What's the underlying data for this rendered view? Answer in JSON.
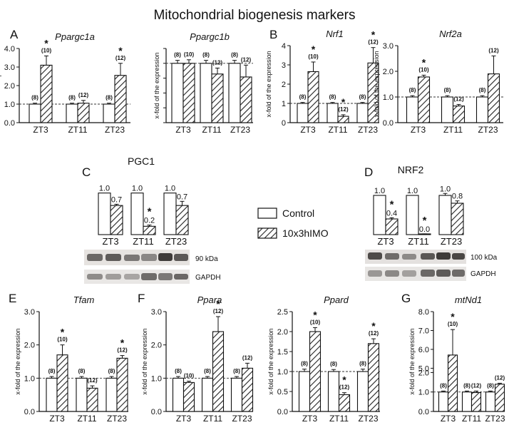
{
  "title": "Mitochondrial biogenesis markers",
  "y_axis_label": "x-fold of the expression",
  "groups": [
    "ZT3",
    "ZT11",
    "ZT23"
  ],
  "colors": {
    "control": "#ffffff",
    "treated_hatch": "#222222",
    "axis": "#111111"
  },
  "legend": {
    "control": "Control",
    "treated": "10x3hIMO"
  },
  "panel_letters": {
    "A": "A",
    "B": "B",
    "C": "C",
    "D": "D",
    "E": "E",
    "F": "F",
    "G": "G"
  },
  "blot_labels": {
    "pgc1_title": "PGC1",
    "pgc1_band": "90 kDa",
    "pgc1_loading": "GAPDH",
    "nrf2_title": "NRF2",
    "nrf2_band": "100 kDa",
    "nrf2_loading": "GAPDH"
  },
  "chart_data": [
    {
      "id": "ppargc1a",
      "type": "bar",
      "title": "Ppargc1a",
      "ylabel": "x-fold of the expression",
      "categories": [
        "ZT3",
        "ZT11",
        "ZT23"
      ],
      "ylim": [
        0,
        4
      ],
      "yticks": [
        "0.0",
        "1.0",
        "2.0",
        "3.0",
        "4.0"
      ],
      "series": [
        {
          "name": "Control",
          "values": [
            1.0,
            1.0,
            1.0
          ],
          "err": [
            0.05,
            0.05,
            0.05
          ],
          "n": [
            "(8)",
            "(8)",
            "(8)"
          ],
          "sig": [
            false,
            false,
            false
          ]
        },
        {
          "name": "10x3hIMO",
          "values": [
            3.1,
            1.05,
            2.55
          ],
          "err": [
            0.5,
            0.15,
            0.65
          ],
          "n": [
            "(10)",
            "(12)",
            "(12)"
          ],
          "sig": [
            true,
            false,
            true
          ]
        }
      ],
      "reference_line": 1.0
    },
    {
      "id": "ppargc1b",
      "type": "bar",
      "title": "Ppargc1b",
      "ylabel": "x-fold of the expression",
      "categories": [
        "ZT3",
        "ZT11",
        "ZT23"
      ],
      "ylim": [
        0,
        1.25
      ],
      "yticks": [],
      "series": [
        {
          "name": "Control",
          "values": [
            1.0,
            1.0,
            1.0
          ],
          "err": [
            0.05,
            0.05,
            0.05
          ],
          "n": [
            "(8)",
            "(8)",
            "(8)"
          ],
          "sig": [
            false,
            false,
            false
          ]
        },
        {
          "name": "10x3hIMO",
          "values": [
            1.0,
            0.82,
            0.77
          ],
          "err": [
            0.06,
            0.1,
            0.2
          ],
          "n": [
            "(10)",
            "(12)",
            "(12)"
          ],
          "sig": [
            false,
            false,
            false
          ]
        }
      ],
      "reference_line": 1.0
    },
    {
      "id": "nrf1",
      "type": "bar",
      "title": "Nrf1",
      "ylabel": "x-fold of the expression",
      "categories": [
        "ZT3",
        "ZT11",
        "ZT23"
      ],
      "ylim": [
        0,
        4
      ],
      "yticks": [
        "0",
        "1",
        "2",
        "3",
        "4"
      ],
      "series": [
        {
          "name": "Control",
          "values": [
            1.0,
            1.0,
            1.0
          ],
          "err": [
            0.05,
            0.05,
            0.05
          ],
          "n": [
            "(8)",
            "(8)",
            "(8)"
          ],
          "sig": [
            false,
            false,
            false
          ]
        },
        {
          "name": "10x3hIMO",
          "values": [
            2.65,
            0.33,
            3.1
          ],
          "err": [
            0.5,
            0.08,
            0.8
          ],
          "n": [
            "(10)",
            "(12)",
            "(12)"
          ],
          "sig": [
            true,
            true,
            true
          ]
        }
      ],
      "reference_line": 1.0
    },
    {
      "id": "nrf2a",
      "type": "bar",
      "title": "Nrf2a",
      "ylabel": "x-fold of the expression",
      "categories": [
        "ZT3",
        "ZT11",
        "ZT23"
      ],
      "ylim": [
        0,
        3
      ],
      "yticks": [
        "0.0",
        "1.0",
        "2.0",
        "3.0"
      ],
      "series": [
        {
          "name": "Control",
          "values": [
            1.0,
            1.0,
            1.0
          ],
          "err": [
            0.05,
            0.05,
            0.05
          ],
          "n": [
            "(8)",
            "(8)",
            "(8)"
          ],
          "sig": [
            false,
            false,
            false
          ]
        },
        {
          "name": "10x3hIMO",
          "values": [
            1.78,
            0.65,
            1.9
          ],
          "err": [
            0.07,
            0.06,
            0.7
          ],
          "n": [
            "(10)",
            "(12)",
            "(12)"
          ],
          "sig": [
            true,
            false,
            false
          ]
        }
      ],
      "reference_line": 1.0
    },
    {
      "id": "pgc1_blot",
      "type": "bar",
      "title": "",
      "categories": [
        "ZT3",
        "ZT11",
        "ZT23"
      ],
      "ylim": [
        0,
        1.2
      ],
      "series": [
        {
          "name": "Control",
          "values": [
            1.0,
            1.0,
            1.0
          ],
          "labels": [
            "1.0",
            "1.0",
            "1.0"
          ],
          "err": [
            0,
            0,
            0
          ],
          "sig": [
            false,
            false,
            false
          ]
        },
        {
          "name": "10x3hIMO",
          "values": [
            0.7,
            0.2,
            0.7
          ],
          "labels": [
            "0.7",
            "0.2",
            "0.7"
          ],
          "err": [
            0.03,
            0.03,
            0.1
          ],
          "sig": [
            false,
            true,
            false
          ]
        }
      ]
    },
    {
      "id": "nrf2_blot",
      "type": "bar",
      "title": "",
      "categories": [
        "ZT3",
        "ZT11",
        "ZT23"
      ],
      "ylim": [
        0,
        1.2
      ],
      "series": [
        {
          "name": "Control",
          "values": [
            1.0,
            1.0,
            1.0
          ],
          "labels": [
            "1.0",
            "1.0",
            "1.0"
          ],
          "err": [
            0,
            0,
            0.05
          ],
          "sig": [
            false,
            false,
            false
          ]
        },
        {
          "name": "10x3hIMO",
          "values": [
            0.4,
            0.0,
            0.8
          ],
          "labels": [
            "0.4",
            "0.0",
            "0.8"
          ],
          "err": [
            0.03,
            0.02,
            0.06
          ],
          "sig": [
            true,
            true,
            false
          ]
        }
      ]
    },
    {
      "id": "tfam",
      "type": "bar",
      "title": "Tfam",
      "ylabel": "x-fold of the expression",
      "categories": [
        "ZT3",
        "ZT11",
        "ZT23"
      ],
      "ylim": [
        0,
        3
      ],
      "yticks": [
        "0.0",
        "1.0",
        "2.0",
        "3.0"
      ],
      "series": [
        {
          "name": "Control",
          "values": [
            1.0,
            1.0,
            1.0
          ],
          "err": [
            0.05,
            0.05,
            0.05
          ],
          "n": [
            "(8)",
            "(8)",
            "(8)"
          ],
          "sig": [
            false,
            false,
            false
          ]
        },
        {
          "name": "10x3hIMO",
          "values": [
            1.7,
            0.7,
            1.6
          ],
          "err": [
            0.3,
            0.07,
            0.08
          ],
          "n": [
            "(10)",
            "(12)",
            "(12)"
          ],
          "sig": [
            true,
            false,
            true
          ]
        }
      ],
      "reference_line": 1.0
    },
    {
      "id": "ppara",
      "type": "bar",
      "title": "Ppara",
      "ylabel": "x-fold of the expression",
      "categories": [
        "ZT3",
        "ZT11",
        "ZT23"
      ],
      "ylim": [
        0,
        3
      ],
      "yticks": [
        "0.0",
        "1.0",
        "2.0",
        "3.0"
      ],
      "series": [
        {
          "name": "Control",
          "values": [
            1.0,
            1.0,
            1.0
          ],
          "err": [
            0.05,
            0.05,
            0.05
          ],
          "n": [
            "(8)",
            "(8)",
            "(8)"
          ],
          "sig": [
            false,
            false,
            false
          ]
        },
        {
          "name": "10x3hIMO",
          "values": [
            0.87,
            2.4,
            1.3
          ],
          "err": [
            0.04,
            0.45,
            0.15
          ],
          "n": [
            "(10)",
            "(12)",
            "(12)"
          ],
          "sig": [
            false,
            true,
            false
          ]
        }
      ],
      "reference_line": 1.0
    },
    {
      "id": "ppard",
      "type": "bar",
      "title": "Ppard",
      "ylabel": "x-fold of the expression",
      "categories": [
        "ZT3",
        "ZT11",
        "ZT23"
      ],
      "ylim": [
        0,
        2.5
      ],
      "yticks": [
        "0.0",
        "0.5",
        "1.0",
        "1.5",
        "2.0",
        "2.5"
      ],
      "series": [
        {
          "name": "Control",
          "values": [
            1.0,
            1.0,
            1.0
          ],
          "err": [
            0.06,
            0.05,
            0.06
          ],
          "n": [
            "(8)",
            "(8)",
            "(8)"
          ],
          "sig": [
            false,
            false,
            false
          ]
        },
        {
          "name": "10x3hIMO",
          "values": [
            2.0,
            0.42,
            1.7
          ],
          "err": [
            0.1,
            0.05,
            0.12
          ],
          "n": [
            "(10)",
            "(12)",
            "(12)"
          ],
          "sig": [
            true,
            true,
            true
          ]
        }
      ],
      "reference_line": 1.0
    },
    {
      "id": "mtnd1",
      "type": "bar",
      "title": "mtNd1",
      "ylabel": "x-fold of the expression",
      "categories": [
        "ZT3",
        "ZT11",
        "ZT23"
      ],
      "axis_break": [
        2.0,
        5.0
      ],
      "yticks": [
        "0.0",
        "1.0",
        "2.0",
        "5.0",
        "6.0",
        "7.0",
        "8.0"
      ],
      "series": [
        {
          "name": "Control",
          "values": [
            1.0,
            1.0,
            1.0
          ],
          "err": [
            0.05,
            0.05,
            0.05
          ],
          "n": [
            "(8)",
            "(8)",
            "(8)"
          ],
          "sig": [
            false,
            false,
            false
          ]
        },
        {
          "name": "10x3hIMO",
          "values": [
            5.7,
            0.97,
            1.4
          ],
          "err": [
            1.35,
            0.08,
            0.05
          ],
          "n": [
            "(10)",
            "(12)",
            "(12)"
          ],
          "sig": [
            true,
            false,
            false
          ]
        }
      ],
      "reference_line": 1.0
    }
  ]
}
